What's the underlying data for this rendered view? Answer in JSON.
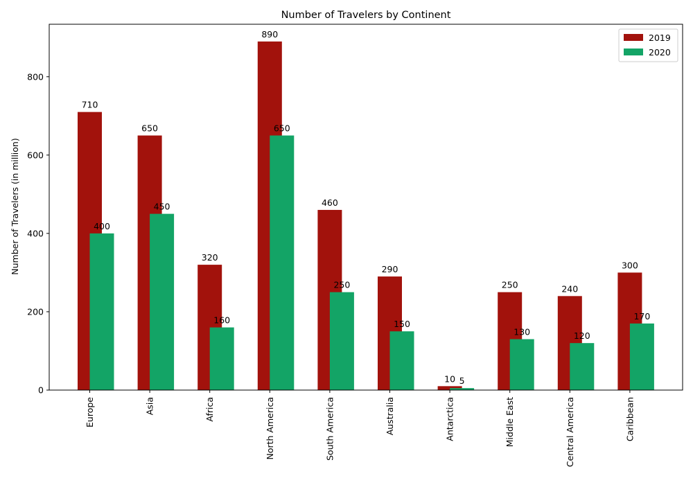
{
  "chart_data": {
    "type": "bar",
    "title": "Number of Travelers by Continent",
    "xlabel": "",
    "ylabel": "Number of Travelers (in million)",
    "categories": [
      "Europe",
      "Asia",
      "Africa",
      "North America",
      "South America",
      "Australia",
      "Antarctica",
      "Middle East",
      "Central America",
      "Caribbean"
    ],
    "series": [
      {
        "name": "2019",
        "color": "#a2120c",
        "values": [
          710,
          650,
          320,
          890,
          460,
          290,
          10,
          250,
          240,
          300
        ]
      },
      {
        "name": "2020",
        "color": "#13a466",
        "values": [
          400,
          450,
          160,
          650,
          250,
          150,
          5,
          130,
          120,
          170
        ]
      }
    ],
    "ylim": [
      0,
      934
    ],
    "yticks": [
      0,
      200,
      400,
      600,
      800
    ],
    "grid": false,
    "legend_position": "top-right",
    "data_labels": true
  }
}
